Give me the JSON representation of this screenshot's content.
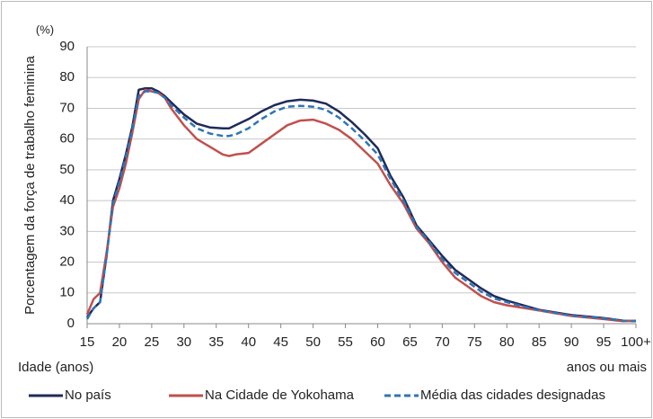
{
  "chart_data": {
    "type": "line",
    "y_label": "Porcentagem da força de trabalho feminina",
    "y_unit": "(%)",
    "x_label": "Idade (anos)",
    "x_note": "anos ou mais",
    "x": [
      15,
      16,
      17,
      18,
      19,
      20,
      21,
      22,
      23,
      24,
      25,
      26,
      27,
      28,
      30,
      32,
      34,
      36,
      37,
      38,
      40,
      42,
      44,
      46,
      48,
      50,
      52,
      54,
      56,
      58,
      60,
      62,
      64,
      66,
      68,
      70,
      72,
      74,
      76,
      78,
      80,
      85,
      90,
      95,
      98,
      100
    ],
    "series": [
      {
        "name": "No país",
        "color": "#1f2a5a",
        "dashed": false,
        "values": [
          2,
          5,
          7,
          22,
          40,
          47,
          55,
          64,
          76,
          76.5,
          76.5,
          75.5,
          74,
          72,
          68,
          65,
          63.8,
          63.5,
          63.5,
          64.5,
          66.5,
          69,
          71,
          72.3,
          72.8,
          72.5,
          71.5,
          69,
          65.5,
          61.5,
          57,
          48,
          41,
          32,
          27,
          22,
          17.5,
          14.5,
          11.5,
          9,
          7.5,
          4.5,
          2.8,
          1.8,
          1.0,
          0.8
        ]
      },
      {
        "name": "Na Cidade de Yokohama",
        "color": "#c0504d",
        "dashed": false,
        "values": [
          3,
          8,
          10,
          23,
          38,
          44,
          52,
          62,
          73,
          76,
          75.5,
          75,
          73.5,
          70,
          64.5,
          60,
          57.5,
          55,
          54.5,
          55,
          55.5,
          58.5,
          61.5,
          64.5,
          66,
          66.3,
          65,
          63,
          60,
          56,
          52,
          45,
          39,
          31,
          26,
          20,
          15,
          12,
          9,
          7,
          6,
          4.3,
          2.5,
          1.5,
          0.8,
          1.0
        ]
      },
      {
        "name": "Média das cidades designadas",
        "color": "#2e75b6",
        "dashed": true,
        "values": [
          1.5,
          5,
          7,
          22,
          39,
          46,
          54,
          63,
          74,
          75.5,
          75.5,
          75,
          73.5,
          71,
          67,
          63.5,
          61.8,
          61,
          61,
          61.5,
          63.5,
          66.5,
          69,
          70.5,
          70.8,
          70.5,
          69.5,
          67,
          63.5,
          59.5,
          55,
          47,
          40,
          31.5,
          26.5,
          21,
          16.5,
          13.5,
          10.5,
          8.2,
          7,
          4.3,
          2.6,
          1.7,
          1.0,
          0.8
        ]
      }
    ],
    "xlim": [
      15,
      100
    ],
    "xticks": [
      15,
      20,
      25,
      30,
      35,
      40,
      45,
      50,
      55,
      60,
      65,
      70,
      75,
      80,
      85,
      90,
      95,
      {
        "value": 100,
        "label": "100+"
      }
    ],
    "ylim": [
      0,
      90
    ],
    "yticks": [
      0,
      10,
      20,
      30,
      40,
      50,
      60,
      70,
      80,
      90
    ],
    "grid": true,
    "legend": "bottom"
  }
}
